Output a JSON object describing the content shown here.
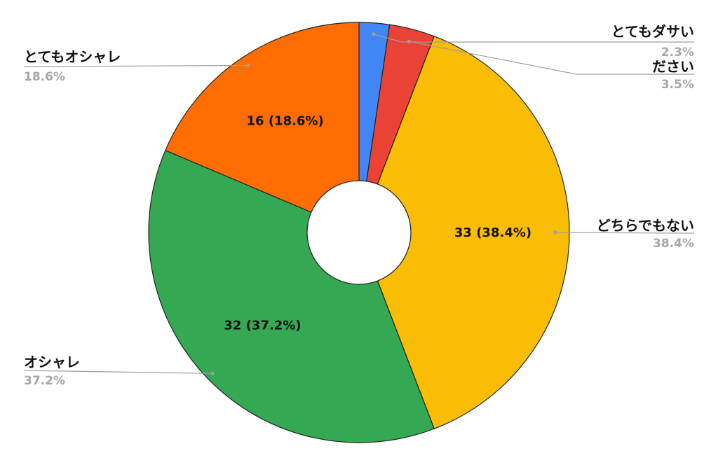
{
  "chart_data": {
    "type": "pie",
    "donut": true,
    "title": "",
    "categories": [
      "とてもダサい",
      "ださい",
      "どちらでもない",
      "オシャレ",
      "とてもオシャレ"
    ],
    "values": [
      2,
      3,
      33,
      32,
      16
    ],
    "percent_labels": [
      "2.3%",
      "3.5%",
      "38.4%",
      "37.2%",
      "18.6%"
    ],
    "slice_labels": [
      "",
      "",
      "33 (38.4%)",
      "32 (37.2%)",
      "16 (18.6%)"
    ],
    "colors": [
      "#4285f4",
      "#ea4335",
      "#fbbc04",
      "#34a853",
      "#ff6d01"
    ],
    "legend": "none",
    "start_angle": "top",
    "direction": "clockwise"
  }
}
